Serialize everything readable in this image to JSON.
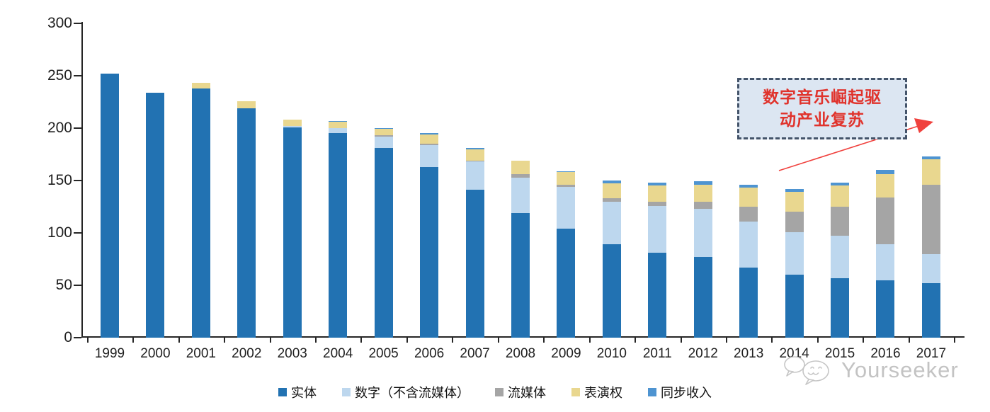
{
  "chart_data": {
    "type": "bar",
    "stacked": true,
    "title": "",
    "xlabel": "",
    "ylabel": "",
    "ylim": [
      0,
      300
    ],
    "yticks": [
      0,
      50,
      100,
      150,
      200,
      250,
      300
    ],
    "grid": false,
    "legend_position": "bottom",
    "categories": [
      "1999",
      "2000",
      "2001",
      "2002",
      "2003",
      "2004",
      "2005",
      "2006",
      "2007",
      "2008",
      "2009",
      "2010",
      "2011",
      "2012",
      "2013",
      "2014",
      "2015",
      "2016",
      "2017"
    ],
    "series": [
      {
        "name": "实体",
        "color": "#2272B2",
        "values": [
          252,
          234,
          238,
          219,
          201,
          195,
          181,
          163,
          141,
          119,
          104,
          89,
          81,
          77,
          67,
          60,
          57,
          55,
          52
        ]
      },
      {
        "name": "数字（不含流媒体）",
        "color": "#BDD7EE",
        "values": [
          0,
          0,
          0,
          0,
          1,
          5,
          11,
          21,
          27,
          34,
          40,
          41,
          45,
          46,
          44,
          41,
          40,
          34,
          28
        ]
      },
      {
        "name": "流媒体",
        "color": "#A5A5A5",
        "values": [
          0,
          0,
          0,
          0,
          0,
          0,
          1,
          1,
          1,
          3,
          2,
          3,
          4,
          7,
          14,
          19,
          28,
          45,
          66
        ]
      },
      {
        "name": "表演权",
        "color": "#E9D78F",
        "values": [
          0,
          0,
          5,
          7,
          6,
          6,
          6,
          9,
          11,
          13,
          12,
          14,
          15,
          16,
          18,
          19,
          20,
          22,
          24
        ]
      },
      {
        "name": "同步收入",
        "color": "#4E94D1",
        "values": [
          0,
          0,
          0,
          0,
          0,
          1,
          1,
          1,
          1,
          0,
          1,
          3,
          3,
          3,
          3,
          3,
          3,
          4,
          3
        ]
      }
    ],
    "axis_color": "#262626",
    "tick_label_color": "#1f1f1f"
  },
  "annotation": {
    "lines": [
      "数字音乐崛起驱",
      "动产业复苏"
    ],
    "border_color": "#44546A",
    "fill_color": "#DCE6F2",
    "text_color": "#E0332C",
    "arrow_color": "#F0413D"
  },
  "watermark": {
    "text": "Yourseeker",
    "icon": "chat-bubbles-smiley-icon",
    "color": "#c3c3c3"
  }
}
